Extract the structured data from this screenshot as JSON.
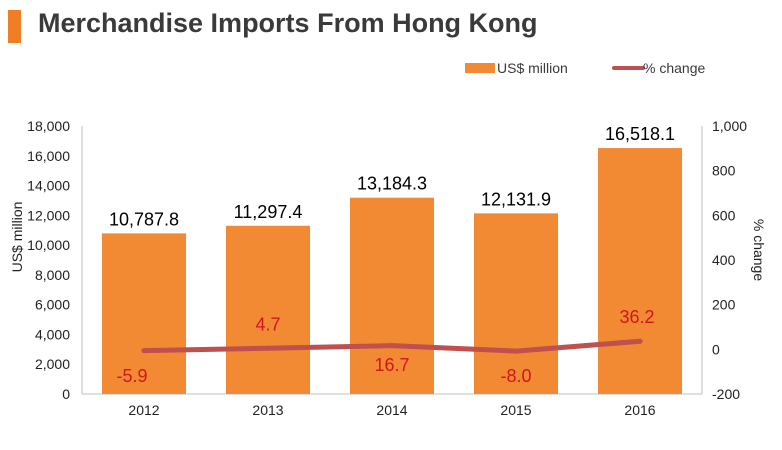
{
  "header": {
    "title": "Merchandise Imports From Hong Kong"
  },
  "colors": {
    "accent": "#f07e26",
    "bar": "#f28a33",
    "line": "#c0504d",
    "pct_text": "#d0161e"
  },
  "chart_data": {
    "type": "bar",
    "title": "Merchandise Imports From Hong Kong",
    "categories": [
      "2012",
      "2013",
      "2014",
      "2015",
      "2016"
    ],
    "series": [
      {
        "name": "US$ million",
        "type": "bar",
        "axis": "left",
        "values": [
          10787.8,
          11297.4,
          13184.3,
          12131.9,
          16518.1
        ],
        "labels": [
          "10,787.8",
          "11,297.4",
          "13,184.3",
          "12,131.9",
          "16,518.1"
        ]
      },
      {
        "name": "% change",
        "type": "line",
        "axis": "right",
        "values": [
          -5.9,
          4.7,
          16.7,
          -8.0,
          36.2
        ],
        "labels": [
          "-5.9",
          "4.7",
          "16.7",
          "-8.0",
          "36.2"
        ]
      }
    ],
    "ylabel": "US$ million",
    "y2label": "% change",
    "ylim": [
      0,
      18000
    ],
    "y2lim": [
      -200,
      1000
    ],
    "yticks": [
      "0",
      "2,000",
      "4,000",
      "6,000",
      "8,000",
      "10,000",
      "12,000",
      "14,000",
      "16,000",
      "18,000"
    ],
    "y2ticks": [
      "-200",
      "0",
      "200",
      "400",
      "600",
      "800",
      "1,000"
    ],
    "legend_position": "top-right",
    "grid": false
  }
}
